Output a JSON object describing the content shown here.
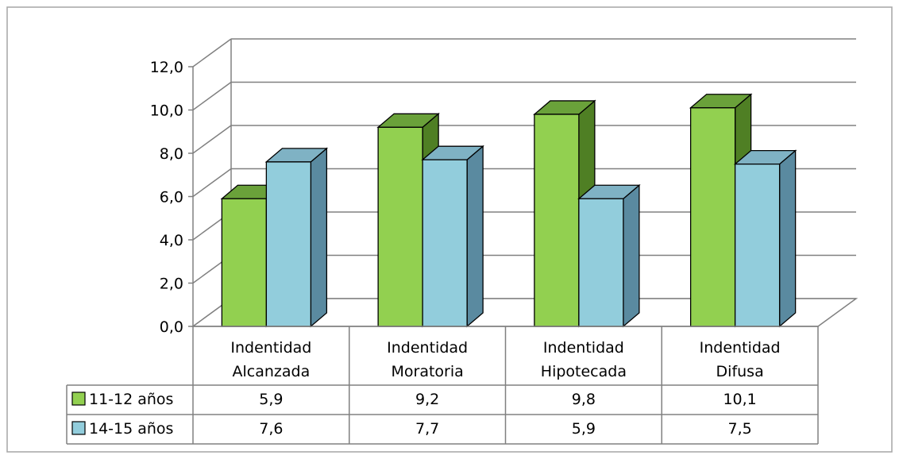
{
  "chart_data": {
    "type": "bar",
    "categories": [
      [
        "Indentidad",
        "Alcanzada"
      ],
      [
        "Indentidad",
        "Moratoria"
      ],
      [
        "Indentidad",
        "Hipotecada"
      ],
      [
        "Indentidad",
        "Difusa"
      ]
    ],
    "series": [
      {
        "name": "11-12 años",
        "values": [
          5.9,
          9.2,
          9.8,
          10.1
        ],
        "labels": [
          "5,9",
          "9,2",
          "9,8",
          "10,1"
        ],
        "color": "#92d050"
      },
      {
        "name": "14-15 años",
        "values": [
          7.6,
          7.7,
          5.9,
          7.5
        ],
        "labels": [
          "7,6",
          "7,7",
          "5,9",
          "7,5"
        ],
        "color": "#92cddc"
      }
    ],
    "ylim": [
      0,
      12
    ],
    "yticks": [
      0,
      2,
      4,
      6,
      8,
      10,
      12
    ],
    "ytick_labels": [
      "0,0",
      "2,0",
      "4,0",
      "6,0",
      "8,0",
      "10,0",
      "12,0"
    ],
    "grid": true,
    "legend": "data-table",
    "style": "3d-clustered-column",
    "colors": {
      "series1_top": "#6aa13a",
      "series1_side": "#4f7f24",
      "series2_top": "#7fb2c4",
      "series2_side": "#5a8aa0",
      "grid": "#808080",
      "frame": "#a6a6a6"
    }
  }
}
